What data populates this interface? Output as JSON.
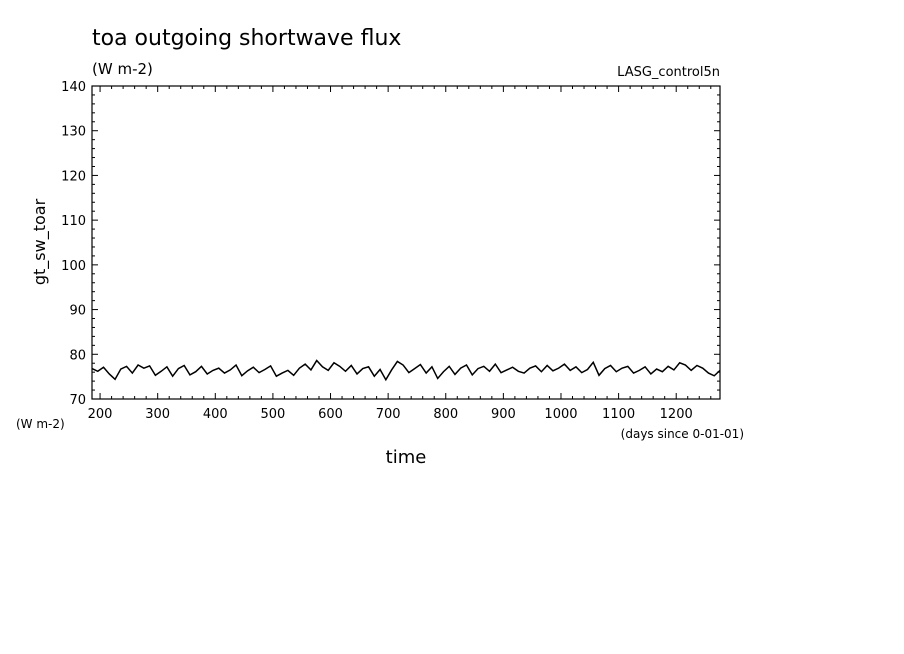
{
  "title": "toa outgoing shortwave flux",
  "subtitle": "(W m-2)",
  "run_label": "LASG_control5n",
  "y_unit_label": "(W m-2)",
  "x_unit_label": "(days since 0-01-01)",
  "chart_data": {
    "type": "line",
    "title": "toa outgoing shortwave flux",
    "subtitle": "(W m-2)",
    "xlabel": "time",
    "ylabel": "gt_sw_toar",
    "xlim": [
      186,
      1276
    ],
    "ylim": [
      70,
      140
    ],
    "x_ticks": [
      200,
      300,
      400,
      500,
      600,
      700,
      800,
      900,
      1000,
      1100,
      1200
    ],
    "y_ticks": [
      70,
      80,
      90,
      100,
      110,
      120,
      130,
      140
    ],
    "grid": false,
    "series": [
      {
        "x": [
          186,
          196,
          206,
          216,
          226,
          236,
          246,
          256,
          266,
          276,
          286,
          296,
          306,
          316,
          326,
          336,
          346,
          356,
          366,
          376,
          386,
          396,
          406,
          416,
          426,
          436,
          446,
          456,
          466,
          476,
          486,
          496,
          506,
          516,
          526,
          536,
          546,
          556,
          566,
          576,
          586,
          596,
          606,
          616,
          626,
          636,
          646,
          656,
          666,
          676,
          686,
          696,
          706,
          716,
          726,
          736,
          746,
          756,
          766,
          776,
          786,
          796,
          806,
          816,
          826,
          836,
          846,
          856,
          866,
          876,
          886,
          896,
          906,
          916,
          926,
          936,
          946,
          956,
          966,
          976,
          986,
          996,
          1006,
          1016,
          1026,
          1036,
          1046,
          1056,
          1066,
          1076,
          1086,
          1096,
          1106,
          1116,
          1126,
          1136,
          1146,
          1156,
          1166,
          1176,
          1186,
          1196,
          1206,
          1216,
          1226,
          1236,
          1246,
          1256,
          1266,
          1276
        ],
        "values": [
          76.8,
          76.2,
          77.1,
          75.6,
          74.4,
          76.7,
          77.3,
          75.8,
          77.6,
          76.9,
          77.4,
          75.3,
          76.2,
          77.2,
          75.1,
          76.8,
          77.5,
          75.4,
          76.1,
          77.3,
          75.6,
          76.4,
          76.9,
          75.8,
          76.5,
          77.6,
          75.2,
          76.3,
          77.1,
          75.9,
          76.6,
          77.4,
          75.1,
          75.8,
          76.4,
          75.3,
          76.9,
          77.8,
          76.5,
          78.6,
          77.2,
          76.4,
          78.1,
          77.3,
          76.2,
          77.5,
          75.6,
          76.8,
          77.2,
          75.1,
          76.6,
          74.3,
          76.5,
          78.4,
          77.6,
          75.9,
          76.8,
          77.7,
          75.8,
          77.2,
          74.6,
          76.1,
          77.3,
          75.5,
          76.9,
          77.6,
          75.4,
          76.8,
          77.3,
          76.2,
          77.8,
          75.9,
          76.5,
          77.1,
          76.2,
          75.8,
          76.9,
          77.4,
          76.1,
          77.5,
          76.3,
          76.9,
          77.8,
          76.4,
          77.2,
          75.9,
          76.6,
          78.2,
          75.3,
          76.8,
          77.5,
          76.1,
          76.9,
          77.3,
          75.8,
          76.4,
          77.2,
          75.6,
          76.7,
          76.1,
          77.3,
          76.5,
          78.1,
          77.6,
          76.4,
          77.5,
          76.9,
          75.8,
          75.2,
          76.4
        ]
      }
    ]
  }
}
